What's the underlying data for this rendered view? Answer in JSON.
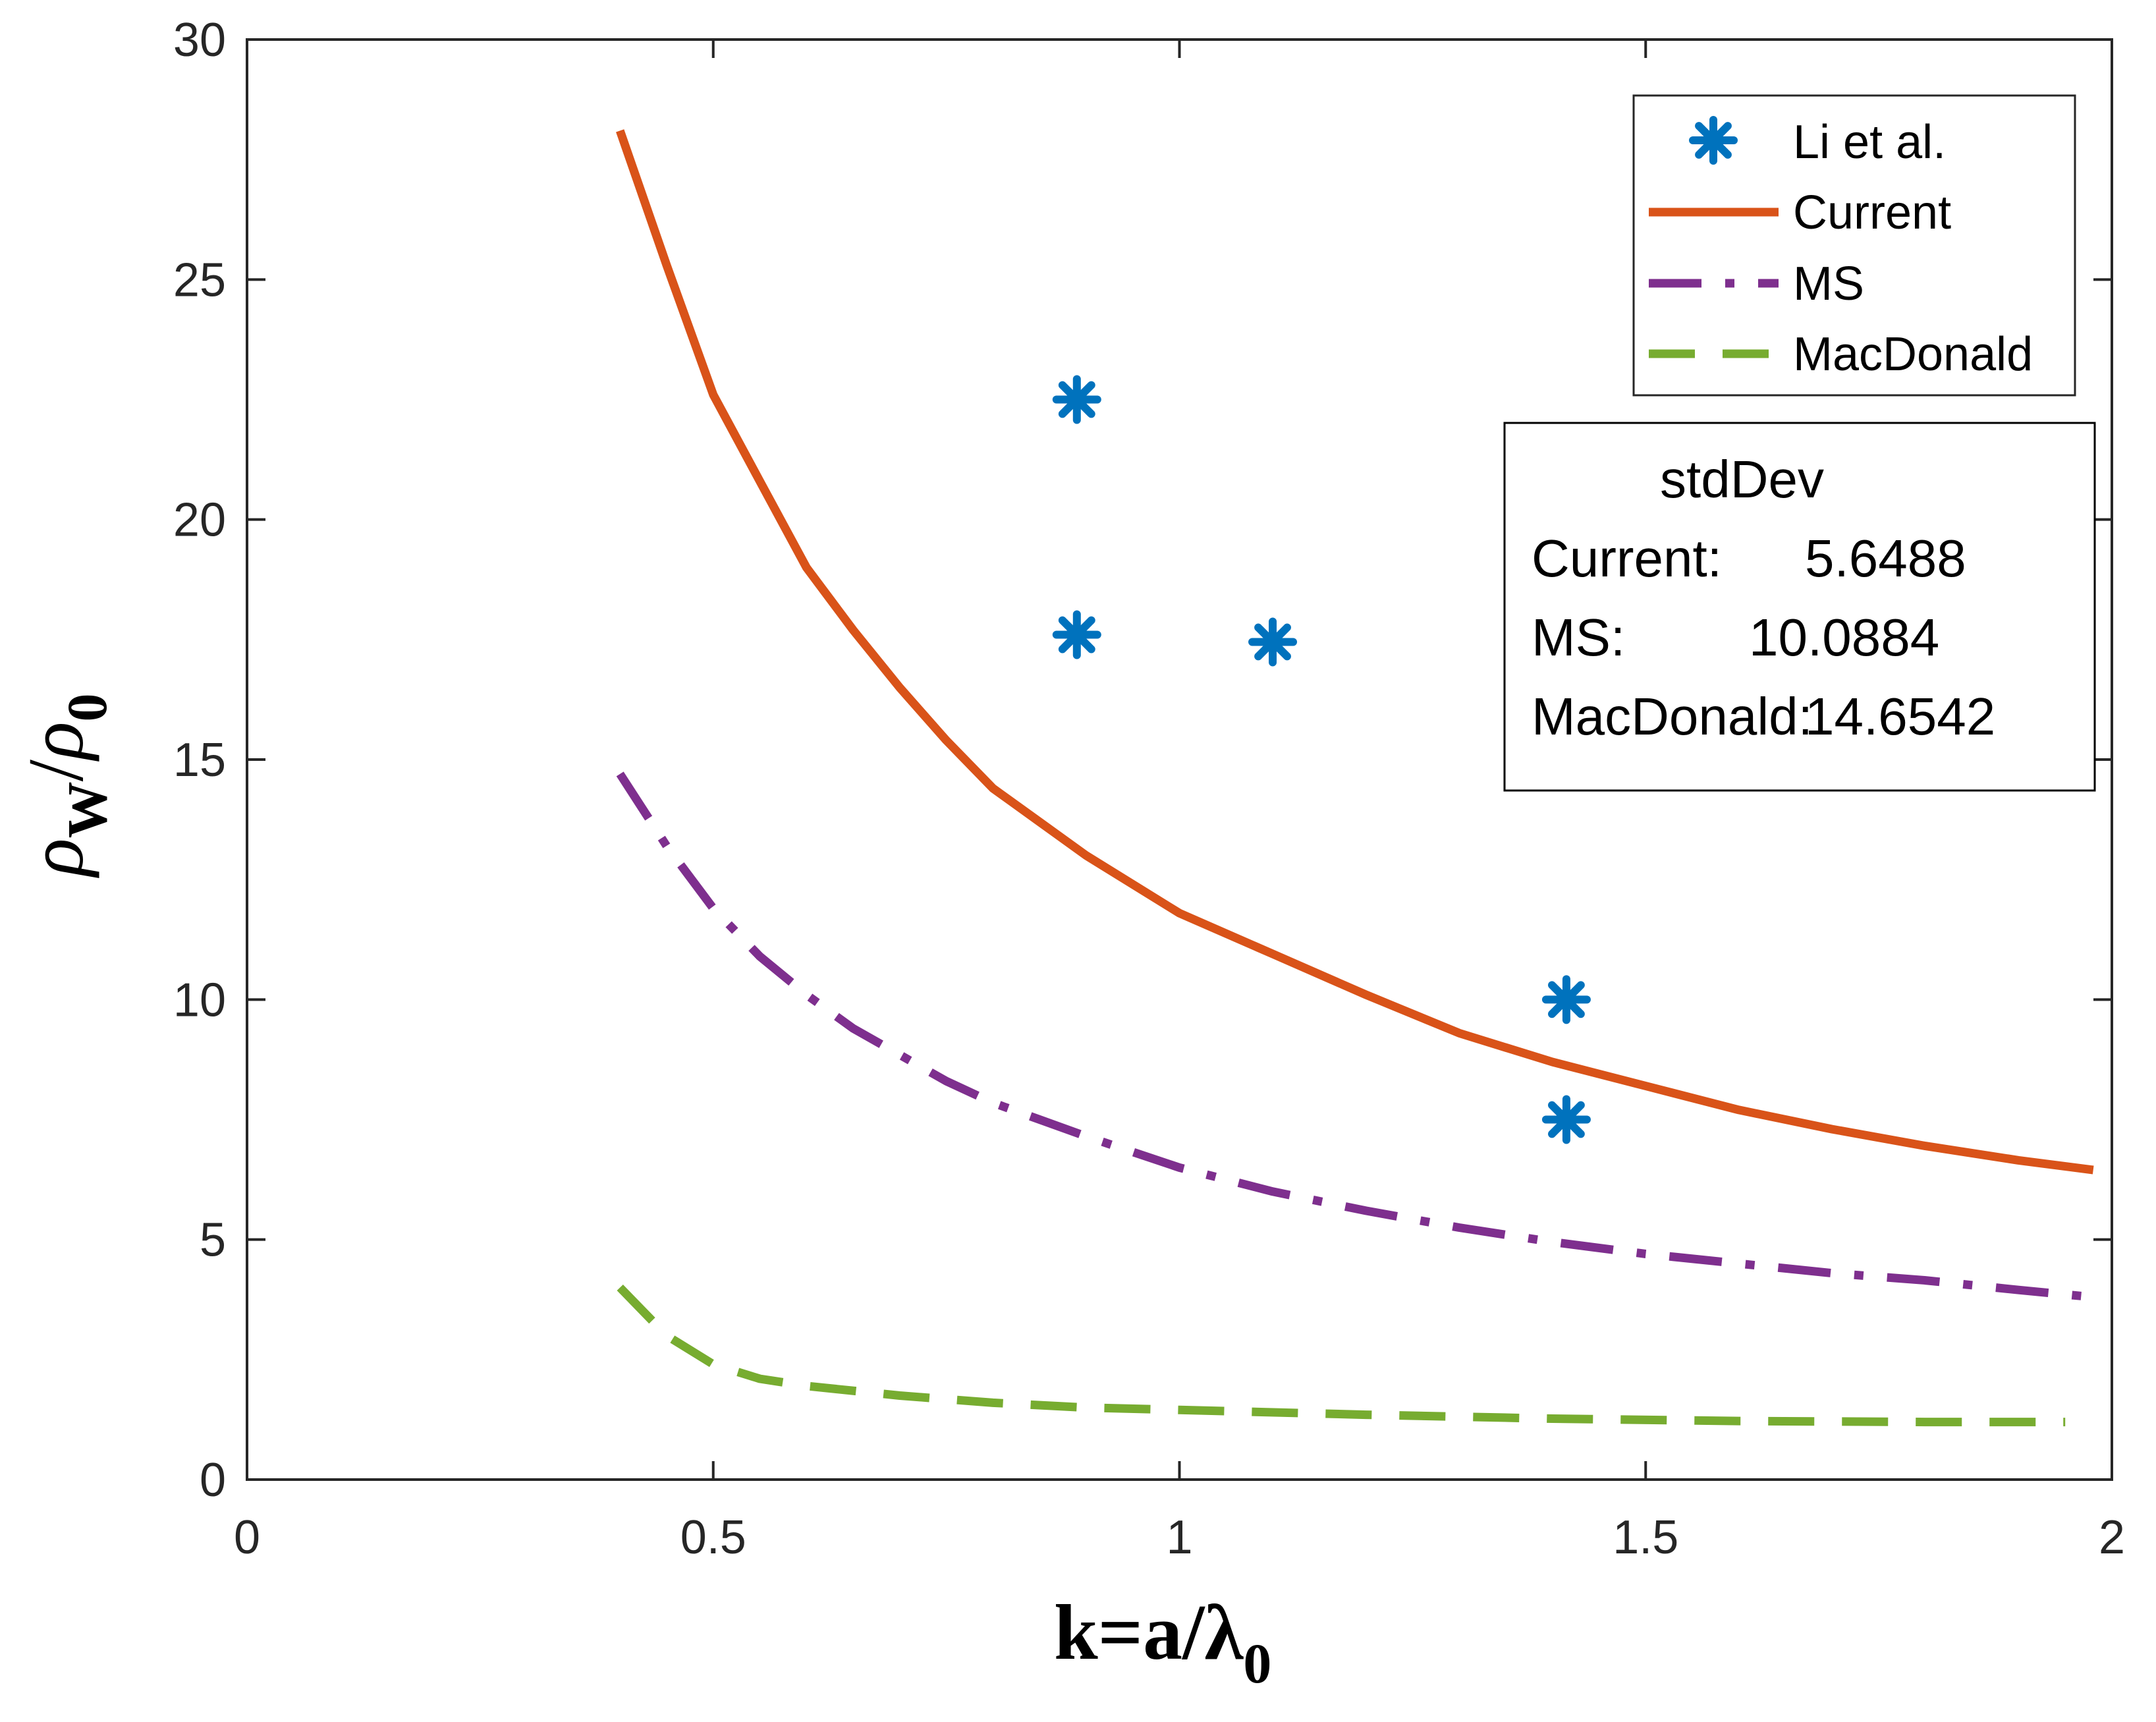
{
  "chart_data": {
    "type": "line",
    "title": "",
    "xlabel": "k=a/λ0",
    "xlabel_parts": {
      "main": "k=a/λ",
      "sub": "0"
    },
    "ylabel": "ρW/ρ0",
    "ylabel_parts": {
      "num": "ρ",
      "num_sub": "W",
      "slash": "/",
      "den": "ρ",
      "den_sub": "0"
    },
    "xlim": [
      0,
      2
    ],
    "ylim": [
      0,
      30
    ],
    "xticks": [
      0,
      0.5,
      1,
      1.5,
      2
    ],
    "xtick_labels": [
      "0",
      "0.5",
      "1",
      "1.5",
      "2"
    ],
    "yticks": [
      0,
      5,
      10,
      15,
      20,
      25,
      30
    ],
    "ytick_labels": [
      "0",
      "5",
      "10",
      "15",
      "20",
      "25",
      "30"
    ],
    "grid": false,
    "legend_position": "top-right",
    "series": [
      {
        "name": "Li et al.",
        "kind": "scatter",
        "marker": "asterisk",
        "color": "#0072BD",
        "x": [
          0.89,
          0.89,
          1.1,
          1.415,
          1.415
        ],
        "y": [
          22.5,
          17.6,
          17.45,
          10.0,
          7.5
        ]
      },
      {
        "name": "Current",
        "kind": "line",
        "style": "solid",
        "color": "#D95319",
        "x": [
          0.4,
          0.45,
          0.5,
          0.55,
          0.6,
          0.65,
          0.7,
          0.75,
          0.8,
          0.85,
          0.9,
          1.0,
          1.1,
          1.2,
          1.3,
          1.4,
          1.5,
          1.6,
          1.7,
          1.8,
          1.9,
          1.98
        ],
        "y": [
          28.1,
          25.3,
          22.6,
          20.8,
          19.0,
          17.7,
          16.5,
          15.4,
          14.4,
          13.7,
          13.0,
          11.8,
          10.95,
          10.1,
          9.3,
          8.7,
          8.2,
          7.7,
          7.3,
          6.95,
          6.65,
          6.45
        ]
      },
      {
        "name": "MS",
        "kind": "line",
        "style": "dash-dot",
        "color": "#7E2F8E",
        "x": [
          0.4,
          0.45,
          0.5,
          0.55,
          0.6,
          0.65,
          0.7,
          0.75,
          0.8,
          0.85,
          0.9,
          1.0,
          1.1,
          1.2,
          1.3,
          1.4,
          1.5,
          1.6,
          1.7,
          1.8,
          1.9,
          1.98
        ],
        "y": [
          14.7,
          13.2,
          11.9,
          10.9,
          10.1,
          9.4,
          8.85,
          8.3,
          7.85,
          7.5,
          7.15,
          6.5,
          6.0,
          5.6,
          5.25,
          4.95,
          4.7,
          4.5,
          4.3,
          4.15,
          3.95,
          3.8
        ]
      },
      {
        "name": "MacDonald",
        "kind": "line",
        "style": "dashed",
        "color": "#77AC30",
        "x": [
          0.4,
          0.45,
          0.5,
          0.55,
          0.6,
          0.7,
          0.8,
          0.9,
          1.0,
          1.2,
          1.4,
          1.6,
          1.8,
          1.95
        ],
        "y": [
          4.0,
          3.0,
          2.4,
          2.1,
          1.95,
          1.75,
          1.6,
          1.5,
          1.45,
          1.35,
          1.27,
          1.22,
          1.2,
          1.2
        ]
      }
    ],
    "annotation": {
      "title": "stdDev",
      "rows": [
        {
          "label": "Current:",
          "value": "5.6488"
        },
        {
          "label": "MS:",
          "value": "10.0884"
        },
        {
          "label": "MacDonald:",
          "value": "14.6542"
        }
      ]
    }
  }
}
